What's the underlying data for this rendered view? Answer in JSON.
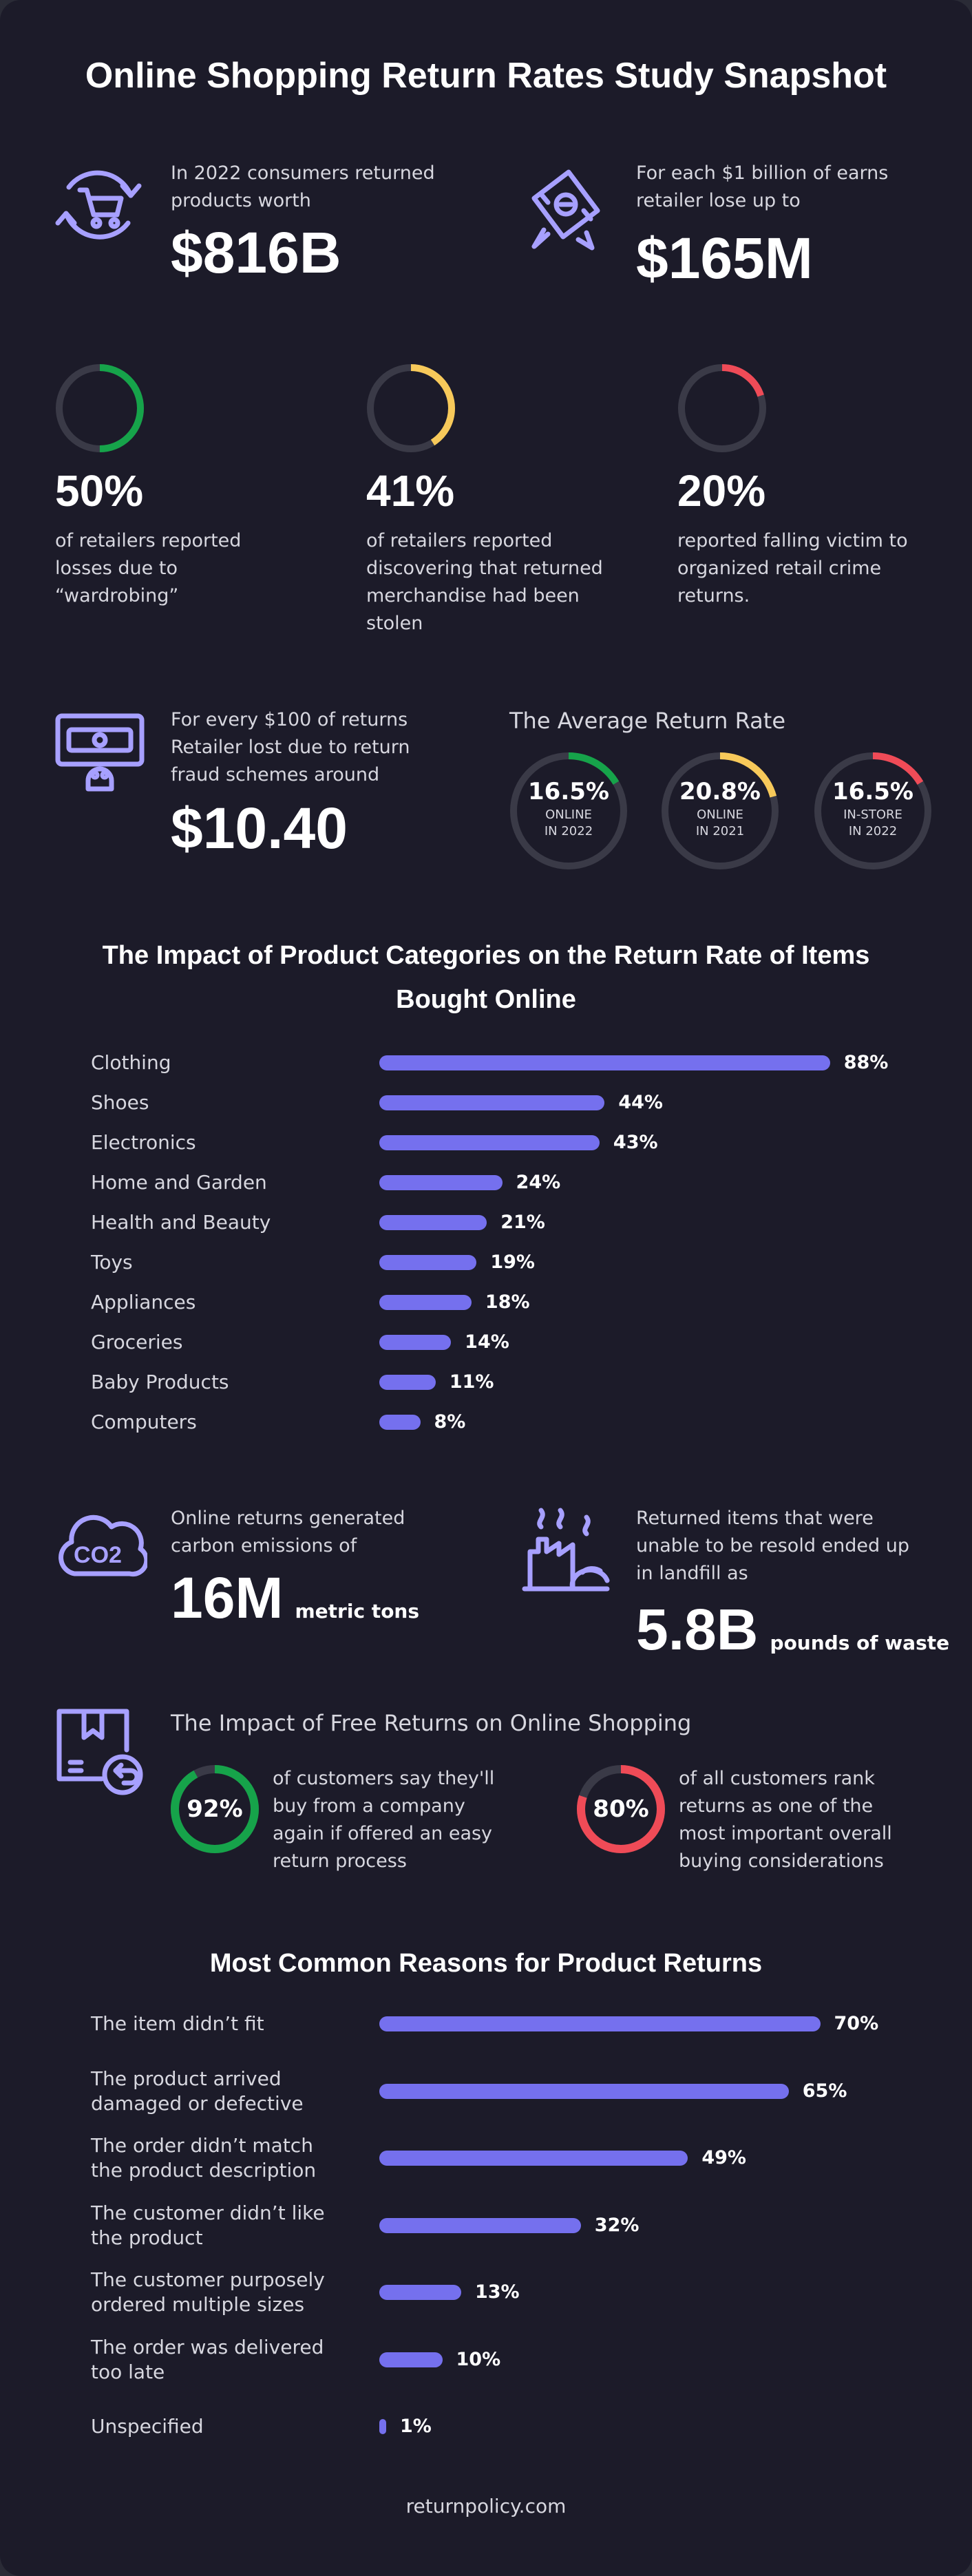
{
  "header": {
    "title": "Online Shopping Return Rates Study Snapshot"
  },
  "stats_top": {
    "returned": {
      "text": "In 2022 consumers returned products worth",
      "line1": "In 2022 consumers returned",
      "line2": "products worth",
      "value": "$816B"
    },
    "lose": {
      "line1": "For each $1 billion of earns",
      "line2": "retailer lose up to",
      "value": "$165M"
    }
  },
  "donuts": [
    {
      "pct": 50,
      "label": "50%",
      "color": "#16a34a",
      "lines": [
        "of retailers reported",
        "losses due to",
        "“wardrobing”"
      ]
    },
    {
      "pct": 41,
      "label": "41%",
      "color": "#f7c95a",
      "lines": [
        "of retailers reported",
        "discovering that returned",
        "merchandise had been",
        "stolen"
      ]
    },
    {
      "pct": 20,
      "label": "20%",
      "color": "#ef4b57",
      "lines": [
        "reported falling victim to",
        "organized retail crime",
        "returns."
      ]
    }
  ],
  "fraud": {
    "lines": [
      "For every $100 of returns",
      "Retailer lost due to return",
      "fraud schemes around"
    ],
    "value": "$10.40"
  },
  "avg_return": {
    "title": "The Average Return Rate",
    "rings": [
      {
        "value": "16.5%",
        "pct": 16.5,
        "l1": "ONLINE",
        "l2": "IN 2022",
        "color": "#16a34a"
      },
      {
        "value": "20.8%",
        "pct": 20.8,
        "l1": "ONLINE",
        "l2": "IN 2021",
        "color": "#f7c95a"
      },
      {
        "value": "16.5%",
        "pct": 16.5,
        "l1": "IN-STORE",
        "l2": "IN 2022",
        "color": "#ef4b57"
      }
    ]
  },
  "co2": {
    "icon_text": "CO2",
    "lines": [
      "Online returns generated",
      "carbon emissions of"
    ],
    "value": "16M",
    "unit": "metric tons"
  },
  "landfill": {
    "lines": [
      "Returned items that were",
      "unable to be resold ended up",
      "in landfill as"
    ],
    "value": "5.8B",
    "unit": "pounds of waste"
  },
  "free_returns": {
    "title": "The Impact of Free Returns on Online Shopping",
    "items": [
      {
        "pct": 92,
        "label": "92%",
        "color": "#16a34a",
        "lines": [
          "of customers say they'll",
          "buy from a company",
          "again if offered an easy",
          "return process"
        ]
      },
      {
        "pct": 80,
        "label": "80%",
        "color": "#ef4b57",
        "lines": [
          "of all customers rank",
          "returns as one of the",
          "most important overall",
          "buying considerations"
        ]
      }
    ]
  },
  "footer": {
    "text": "returnpolicy.com"
  },
  "chart_data": [
    {
      "type": "bar",
      "orientation": "horizontal",
      "title": "The Impact of Product Categories on the Return Rate of Items Bought Online",
      "title_lines": [
        "The Impact of Product Categories on the Return Rate of Items",
        "Bought Online"
      ],
      "categories": [
        "Clothing",
        "Shoes",
        "Electronics",
        "Home and Garden",
        "Health and Beauty",
        "Toys",
        "Appliances",
        "Groceries",
        "Baby Products",
        "Computers"
      ],
      "values": [
        88,
        44,
        43,
        24,
        21,
        19,
        18,
        14,
        11,
        8
      ],
      "value_labels": [
        "88%",
        "44%",
        "43%",
        "24%",
        "21%",
        "19%",
        "18%",
        "14%",
        "11%",
        "8%"
      ],
      "unit": "%",
      "xlim": [
        0,
        100
      ]
    },
    {
      "type": "bar",
      "orientation": "horizontal",
      "title": "Most Common Reasons for Product Returns",
      "categories": [
        "The item didn't fit",
        "The product arrived damaged or defective",
        "The order didn't match the product description",
        "The customer didn't like the product",
        "The customer purposely ordered multiple sizes",
        "The order was delivered too late",
        "Unspecified"
      ],
      "category_lines": [
        [
          "The item didn’t fit"
        ],
        [
          "The product arrived",
          "damaged or defective"
        ],
        [
          "The order didn’t match",
          "the product description"
        ],
        [
          "The customer didn’t like",
          "the product"
        ],
        [
          "The customer purposely",
          "ordered multiple sizes"
        ],
        [
          "The order was delivered",
          "too late"
        ],
        [
          "Unspecified"
        ]
      ],
      "values": [
        70,
        65,
        49,
        32,
        13,
        10,
        1
      ],
      "value_labels": [
        "70%",
        "65%",
        "49%",
        "32%",
        "13%",
        "10%",
        "1%"
      ],
      "unit": "%",
      "xlim": [
        0,
        100
      ]
    }
  ]
}
